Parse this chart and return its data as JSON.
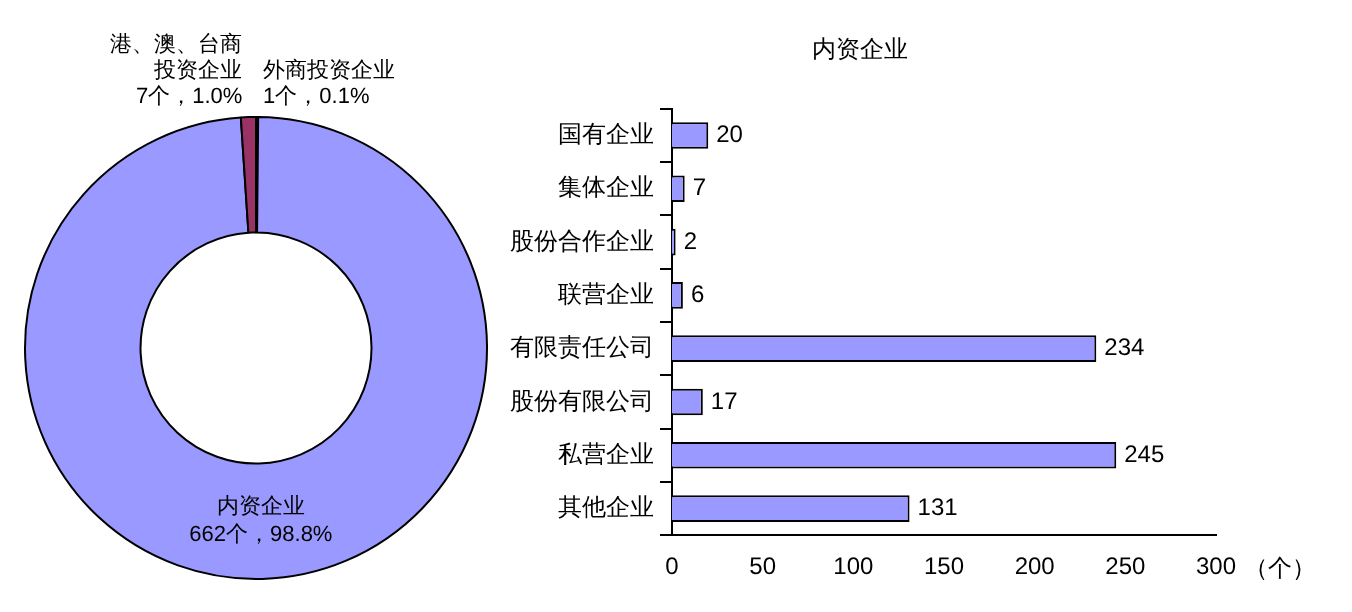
{
  "chart_data": [
    {
      "type": "donut",
      "categories": [
        "外商投资企业",
        "内资企业",
        "港、澳、台商投资企业"
      ],
      "values": [
        1,
        662,
        7
      ],
      "colors": [
        "#ffffee",
        "#9999ff",
        "#993366"
      ],
      "value_labels": [
        "1个，0.1%",
        "662个，98.8%",
        "7个，1.0%"
      ],
      "legend": false
    },
    {
      "type": "bar",
      "orientation": "horizontal",
      "title": "内资企业",
      "xlabel": "（个）",
      "categories": [
        "国有企业",
        "集体企业",
        "股份合作企业",
        "联营企业",
        "有限责任公司",
        "股份有限公司",
        "私营企业",
        "其他企业"
      ],
      "values": [
        20,
        7,
        2,
        6,
        234,
        17,
        245,
        131
      ],
      "color": "#9999ff",
      "xlim": [
        0,
        300
      ],
      "xticks": [
        0,
        50,
        100,
        150,
        200,
        250,
        300
      ],
      "data_labels": true,
      "grid": false,
      "legend": false
    }
  ]
}
